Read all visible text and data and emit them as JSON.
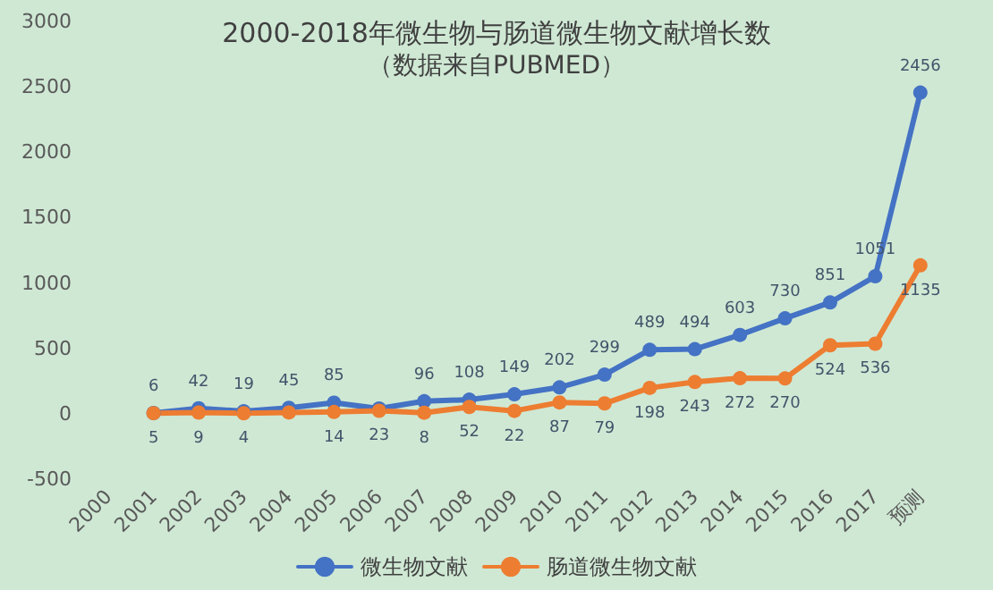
{
  "chart_data": {
    "type": "line",
    "title": "2000-2018年微生物与肠道微生物文献增长数",
    "subtitle": "（数据来自PUBMED）",
    "categories": [
      "2000",
      "2001",
      "2002",
      "2003",
      "2004",
      "2005",
      "2006",
      "2007",
      "2008",
      "2009",
      "2010",
      "2011",
      "2012",
      "2013",
      "2014",
      "2015",
      "2016",
      "2017",
      "预测"
    ],
    "series": [
      {
        "name": "微生物文献",
        "color": "#4472c4",
        "values": [
          null,
          6,
          42,
          19,
          45,
          85,
          40,
          96,
          108,
          149,
          202,
          299,
          489,
          494,
          603,
          730,
          851,
          1051,
          2456
        ],
        "value_labels": [
          null,
          "6",
          "42",
          "19",
          "45",
          "85",
          null,
          "96",
          "108",
          "149",
          "202",
          "299",
          "489",
          "494",
          "603",
          "730",
          "851",
          "1051",
          "2456"
        ]
      },
      {
        "name": "肠道微生物文献",
        "color": "#ed7d31",
        "values": [
          null,
          5,
          9,
          4,
          10,
          14,
          23,
          8,
          52,
          22,
          87,
          79,
          198,
          243,
          272,
          270,
          524,
          536,
          1135
        ],
        "value_labels": [
          null,
          "5",
          "9",
          "4",
          null,
          "14",
          "23",
          "8",
          "52",
          "22",
          "87",
          "79",
          "198",
          "243",
          "272",
          "270",
          "524",
          "536",
          "1135"
        ]
      }
    ],
    "ylim": [
      -500,
      3000
    ],
    "yticks": [
      -500,
      0,
      500,
      1000,
      1500,
      2000,
      2500,
      3000
    ],
    "grid": false,
    "legend": "bottom",
    "marker": "circle"
  }
}
